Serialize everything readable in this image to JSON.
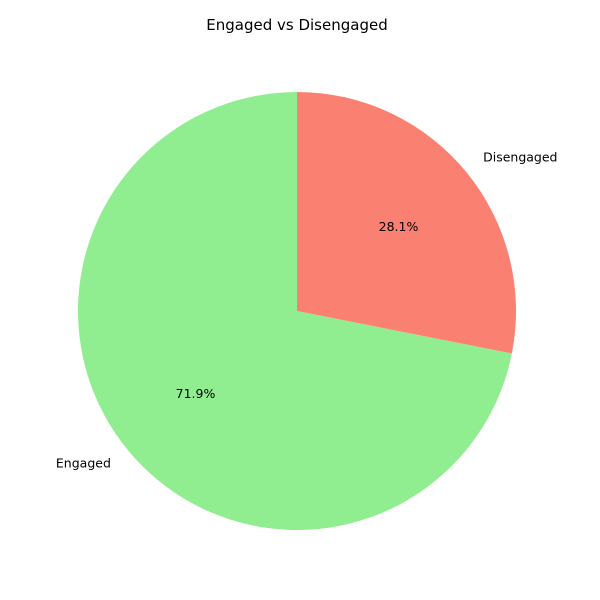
{
  "chart_data": {
    "type": "pie",
    "title": "Engaged vs Disengaged",
    "slices": [
      {
        "label": "Engaged",
        "value": 71.9,
        "pct_label": "71.9%",
        "color": "#90ee90"
      },
      {
        "label": "Disengaged",
        "value": 28.1,
        "pct_label": "28.1%",
        "color": "#fa8072"
      }
    ],
    "start_angle_deg": 90,
    "direction": "counterclockwise",
    "legend": "none"
  }
}
